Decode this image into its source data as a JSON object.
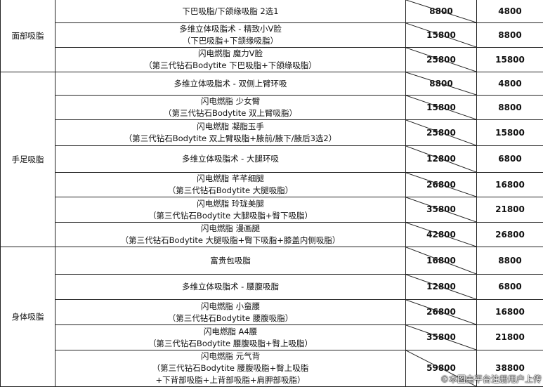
{
  "categories": [
    {
      "name": "面部吸脂",
      "rows": [
        {
          "item": "下巴吸脂/下颌缘吸脂  2选1",
          "original": "8800",
          "price": "4800"
        },
        {
          "item": "多维立体吸脂术 - 精致小V脸\n（下巴吸脂+下颌缘吸脂）",
          "original": "15800",
          "price": "8800"
        },
        {
          "item": "闪电燃脂 魔力V脸\n（第三代钻石Bodytite 下巴吸脂+下颌缘吸脂）",
          "original": "25800",
          "price": "15800"
        }
      ]
    },
    {
      "name": "手足吸脂",
      "rows": [
        {
          "item": "多维立体吸脂术 - 双侧上臂环吸",
          "original": "8800",
          "price": "4800"
        },
        {
          "item": "闪电燃脂 少女臂\n（第三代钻石Bodytite 双上臂吸脂）",
          "original": "15800",
          "price": "8800"
        },
        {
          "item": "闪电燃脂 凝脂玉手\n（第三代钻石Bodytite 双上臂吸脂+腋前/腋下/腋后3选2）",
          "original": "25800",
          "price": "15800"
        },
        {
          "item": "多维立体吸脂术 - 大腿环吸",
          "original": "12800",
          "price": "6800"
        },
        {
          "item": "闪电燃脂 芊芊细腿\n（第三代钻石Bodytite 大腿吸脂）",
          "original": "26800",
          "price": "16800"
        },
        {
          "item": "闪电燃脂 玲珑美腿\n（第三代钻石Bodytite 大腿吸脂+臀下吸脂）",
          "original": "35800",
          "price": "21800"
        },
        {
          "item": "闪电燃脂 漫画腿\n（第三代钻石Bodytite 大腿吸脂+臀下吸脂+膝盖内侧吸脂）",
          "original": "42800",
          "price": "26800"
        }
      ]
    },
    {
      "name": "身体吸脂",
      "rows": [
        {
          "item": "富贵包吸脂",
          "original": "16800",
          "price": "8800"
        },
        {
          "item": "多维立体吸脂术 - 腰腹吸脂",
          "original": "12800",
          "price": "6800"
        },
        {
          "item": "闪电燃脂 小蛮腰\n（第三代钻石Bodytite 腰腹吸脂）",
          "original": "26800",
          "price": "16800"
        },
        {
          "item": "闪电燃脂 A4腰\n（第三代钻石Bodytite 腰腹吸脂+臀上吸脂）",
          "original": "35800",
          "price": "21800"
        },
        {
          "item": "闪电燃脂 元气背\n（第三代钻石Bodytite 腰腹吸脂+臀上吸脂\n+下背部吸脂+上背部吸脂+肩胛部吸脂）",
          "original": "59800",
          "price": "38800"
        }
      ]
    }
  ],
  "watermark": "©本图由平台注册用户上传"
}
